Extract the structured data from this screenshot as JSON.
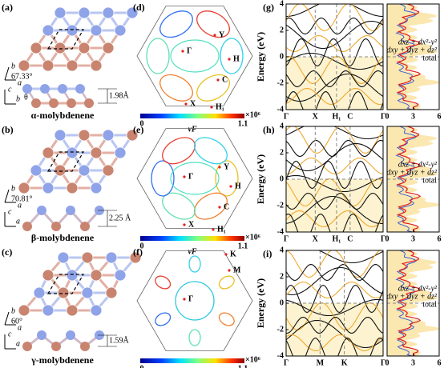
{
  "structures": [
    {
      "label": "(a)",
      "top_axes": [
        "b",
        "a"
      ],
      "angle": "67.33°",
      "side_axes": [
        "c",
        "b"
      ],
      "theta": "θ",
      "thickness": "1.98Å",
      "name": "α-molybdenene"
    },
    {
      "label": "(b)",
      "top_axes": [
        "b",
        "a"
      ],
      "angle": "70.81°",
      "side_axes": [
        "c",
        "a"
      ],
      "thickness": "2.25 Å",
      "name": "β-molybdenene"
    },
    {
      "label": "(c)",
      "top_axes": [
        "b",
        "a"
      ],
      "angle": "60°",
      "side_axes": [
        "c",
        "a"
      ],
      "thickness": "1.59Å",
      "name": "γ-molybdenene"
    }
  ],
  "fermi": [
    {
      "label": "(d)",
      "points": [
        "Γ",
        "Y",
        "H",
        "C",
        "X",
        "H₁"
      ]
    },
    {
      "label": "(e)",
      "points": [
        "Γ",
        "Y",
        "H",
        "C",
        "X",
        "H₁"
      ]
    },
    {
      "label": "(f)",
      "points": [
        "Γ",
        "K",
        "M"
      ]
    }
  ],
  "colorbar": {
    "min": 0,
    "max": 1.1,
    "multiplier": "×10⁶",
    "label": "vF"
  },
  "bands": {
    "ylabel": "Energy (eV)",
    "ylim": [
      -4,
      4
    ],
    "yticks": [
      -4,
      -2,
      0,
      2,
      4
    ],
    "dos_xlim": [
      0,
      6
    ],
    "dos_xticks": [
      0,
      3,
      6
    ],
    "panels": [
      {
        "label": "(g)",
        "kpoints": [
          "Γ",
          "X",
          "H₁",
          "C",
          "Γ"
        ],
        "legend": [
          "dxz + dx²-y²",
          "dxy + dyz + dz²",
          "total"
        ]
      },
      {
        "label": "(h)",
        "kpoints": [
          "Γ",
          "X",
          "H₁",
          "C",
          "Γ"
        ],
        "legend": [
          "dxz + dx²-y²",
          "dxy + dyz + dz²",
          "total"
        ]
      },
      {
        "label": "(i)",
        "kpoints": [
          "Γ",
          "M",
          "K",
          "Γ"
        ],
        "legend": [
          "dxz + dx²-y²",
          "dxy + dyz + dz²",
          "total"
        ]
      }
    ]
  }
}
